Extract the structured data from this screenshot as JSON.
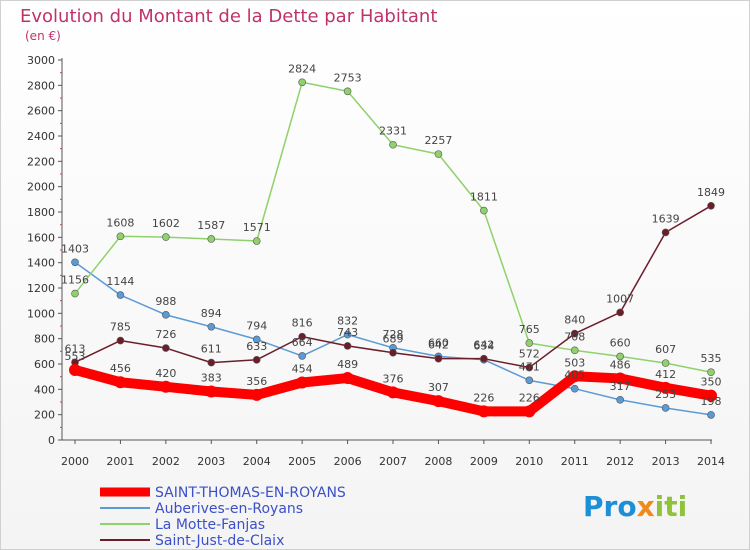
{
  "chart_data": {
    "type": "line",
    "title": "Evolution du Montant de la Dette par Habitant",
    "subtitle": "(en €)",
    "xlabel": "",
    "ylabel": "",
    "ylim": [
      0,
      3000
    ],
    "yticks": [
      0,
      200,
      400,
      600,
      800,
      1000,
      1200,
      1400,
      1600,
      1800,
      2000,
      2200,
      2400,
      2600,
      2800,
      3000
    ],
    "x": [
      "2000",
      "2001",
      "2002",
      "2003",
      "2004",
      "2005",
      "2006",
      "2007",
      "2008",
      "2009",
      "2010",
      "2011",
      "2012",
      "2013",
      "2014"
    ],
    "grid": false,
    "legend_position": "bottom-left",
    "series": [
      {
        "name": "Auberives-en-Royans",
        "color": "#5b9bd5",
        "values": [
          1403,
          1144,
          988,
          894,
          794,
          664,
          832,
          728,
          660,
          634,
          471,
          405,
          317,
          253,
          198
        ]
      },
      {
        "name": "La Motte-Fanjas",
        "color": "#8fd16a",
        "values": [
          1156,
          1608,
          1602,
          1587,
          1571,
          2824,
          2753,
          2331,
          2257,
          1811,
          765,
          708,
          660,
          607,
          535
        ]
      },
      {
        "name": "Saint-Just-de-Claix",
        "color": "#6b1e2a",
        "values": [
          613,
          785,
          726,
          611,
          633,
          816,
          743,
          689,
          642,
          642,
          572,
          840,
          1007,
          1639,
          1849
        ]
      },
      {
        "name": "SAINT-THOMAS-EN-ROYANS",
        "color": "#ff0000",
        "values": [
          553,
          456,
          420,
          383,
          356,
          454,
          489,
          376,
          307,
          226,
          226,
          503,
          486,
          412,
          350
        ]
      }
    ]
  },
  "logo": {
    "text": "Proxiti"
  },
  "colors": {
    "title": "#c0336a",
    "legend_text": "#3c50c8",
    "axis": "#333333"
  }
}
